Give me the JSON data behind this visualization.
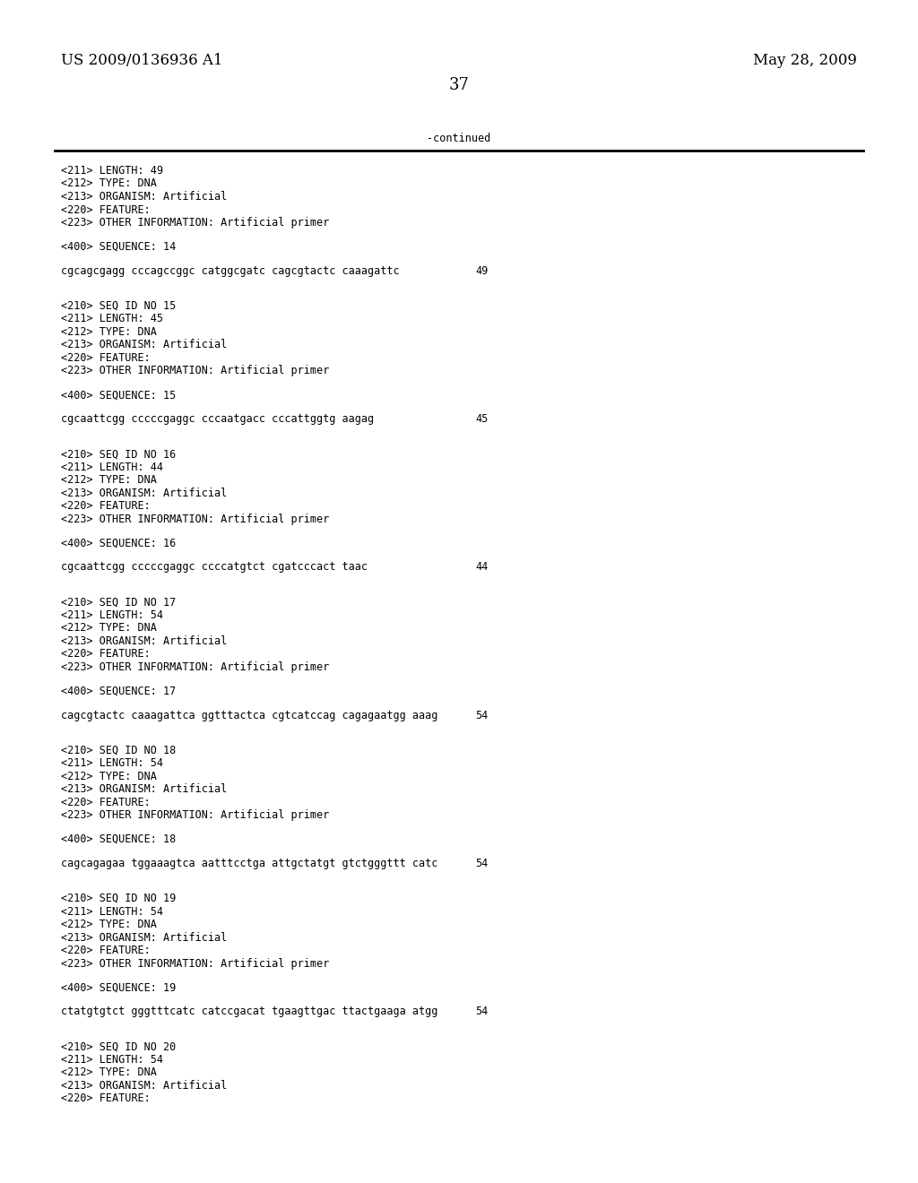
{
  "background_color": "#ffffff",
  "header_left": "US 2009/0136936 A1",
  "header_right": "May 28, 2009",
  "page_number": "37",
  "continued_label": "-continued",
  "font_size_header": 12,
  "font_size_body": 8.5,
  "font_size_page": 13,
  "content": [
    {
      "type": "meta",
      "text": "<211> LENGTH: 49"
    },
    {
      "type": "meta",
      "text": "<212> TYPE: DNA"
    },
    {
      "type": "meta",
      "text": "<213> ORGANISM: Artificial"
    },
    {
      "type": "meta",
      "text": "<220> FEATURE:"
    },
    {
      "type": "meta",
      "text": "<223> OTHER INFORMATION: Artificial primer"
    },
    {
      "type": "blank"
    },
    {
      "type": "meta",
      "text": "<400> SEQUENCE: 14"
    },
    {
      "type": "blank"
    },
    {
      "type": "seq",
      "text": "cgcagcgagg cccagccggc catggcgatc cagcgtactc caaagattc",
      "length": "49"
    },
    {
      "type": "blank"
    },
    {
      "type": "blank"
    },
    {
      "type": "meta",
      "text": "<210> SEQ ID NO 15"
    },
    {
      "type": "meta",
      "text": "<211> LENGTH: 45"
    },
    {
      "type": "meta",
      "text": "<212> TYPE: DNA"
    },
    {
      "type": "meta",
      "text": "<213> ORGANISM: Artificial"
    },
    {
      "type": "meta",
      "text": "<220> FEATURE:"
    },
    {
      "type": "meta",
      "text": "<223> OTHER INFORMATION: Artificial primer"
    },
    {
      "type": "blank"
    },
    {
      "type": "meta",
      "text": "<400> SEQUENCE: 15"
    },
    {
      "type": "blank"
    },
    {
      "type": "seq",
      "text": "cgcaattcgg cccccgaggc cccaatgacc cccattggtg aagag",
      "length": "45"
    },
    {
      "type": "blank"
    },
    {
      "type": "blank"
    },
    {
      "type": "meta",
      "text": "<210> SEQ ID NO 16"
    },
    {
      "type": "meta",
      "text": "<211> LENGTH: 44"
    },
    {
      "type": "meta",
      "text": "<212> TYPE: DNA"
    },
    {
      "type": "meta",
      "text": "<213> ORGANISM: Artificial"
    },
    {
      "type": "meta",
      "text": "<220> FEATURE:"
    },
    {
      "type": "meta",
      "text": "<223> OTHER INFORMATION: Artificial primer"
    },
    {
      "type": "blank"
    },
    {
      "type": "meta",
      "text": "<400> SEQUENCE: 16"
    },
    {
      "type": "blank"
    },
    {
      "type": "seq",
      "text": "cgcaattcgg cccccgaggc ccccatgtct cgatcccact taac",
      "length": "44"
    },
    {
      "type": "blank"
    },
    {
      "type": "blank"
    },
    {
      "type": "meta",
      "text": "<210> SEQ ID NO 17"
    },
    {
      "type": "meta",
      "text": "<211> LENGTH: 54"
    },
    {
      "type": "meta",
      "text": "<212> TYPE: DNA"
    },
    {
      "type": "meta",
      "text": "<213> ORGANISM: Artificial"
    },
    {
      "type": "meta",
      "text": "<220> FEATURE:"
    },
    {
      "type": "meta",
      "text": "<223> OTHER INFORMATION: Artificial primer"
    },
    {
      "type": "blank"
    },
    {
      "type": "meta",
      "text": "<400> SEQUENCE: 17"
    },
    {
      "type": "blank"
    },
    {
      "type": "seq",
      "text": "cagcgtactc caaagattca ggtttactca cgtcatccag cagagaatgg aaag",
      "length": "54"
    },
    {
      "type": "blank"
    },
    {
      "type": "blank"
    },
    {
      "type": "meta",
      "text": "<210> SEQ ID NO 18"
    },
    {
      "type": "meta",
      "text": "<211> LENGTH: 54"
    },
    {
      "type": "meta",
      "text": "<212> TYPE: DNA"
    },
    {
      "type": "meta",
      "text": "<213> ORGANISM: Artificial"
    },
    {
      "type": "meta",
      "text": "<220> FEATURE:"
    },
    {
      "type": "meta",
      "text": "<223> OTHER INFORMATION: Artificial primer"
    },
    {
      "type": "blank"
    },
    {
      "type": "meta",
      "text": "<400> SEQUENCE: 18"
    },
    {
      "type": "blank"
    },
    {
      "type": "seq",
      "text": "cagcagagaa tggaaagtca aatttcctga attgctatgt gtctgggttt catc",
      "length": "54"
    },
    {
      "type": "blank"
    },
    {
      "type": "blank"
    },
    {
      "type": "meta",
      "text": "<210> SEQ ID NO 19"
    },
    {
      "type": "meta",
      "text": "<211> LENGTH: 54"
    },
    {
      "type": "meta",
      "text": "<212> TYPE: DNA"
    },
    {
      "type": "meta",
      "text": "<213> ORGANISM: Artificial"
    },
    {
      "type": "meta",
      "text": "<220> FEATURE:"
    },
    {
      "type": "meta",
      "text": "<223> OTHER INFORMATION: Artificial primer"
    },
    {
      "type": "blank"
    },
    {
      "type": "meta",
      "text": "<400> SEQUENCE: 19"
    },
    {
      "type": "blank"
    },
    {
      "type": "seq",
      "text": "ctatgtgtct gggtttcatc catccgacat tgaagttgac ttactgaaga atgg",
      "length": "54"
    },
    {
      "type": "blank"
    },
    {
      "type": "blank"
    },
    {
      "type": "meta",
      "text": "<210> SEQ ID NO 20"
    },
    {
      "type": "meta",
      "text": "<211> LENGTH: 54"
    },
    {
      "type": "meta",
      "text": "<212> TYPE: DNA"
    },
    {
      "type": "meta",
      "text": "<213> ORGANISM: Artificial"
    },
    {
      "type": "meta",
      "text": "<220> FEATURE:"
    }
  ]
}
